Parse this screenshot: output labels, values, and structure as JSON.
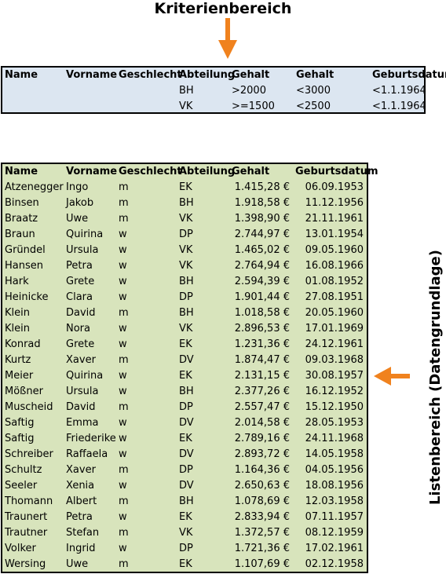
{
  "titles": {
    "top": "Kriterienbereich",
    "side": "Listenbereich (Datengrundlage)"
  },
  "colors": {
    "accent_arrow": "#f0821e",
    "criteria_bg": "#dce6f1",
    "list_bg": "#d8e4bc"
  },
  "criteria": {
    "headers": [
      "Name",
      "Vorname",
      "Geschlecht",
      "Abteilung",
      "Gehalt",
      "Gehalt",
      "Geburtsdatum"
    ],
    "rows": [
      [
        "",
        "",
        "",
        "BH",
        ">2000",
        "<3000",
        "<1.1.1964"
      ],
      [
        "",
        "",
        "",
        "VK",
        ">=1500",
        "<2500",
        "<1.1.1964"
      ]
    ]
  },
  "list": {
    "headers": [
      "Name",
      "Vorname",
      "Geschlecht",
      "Abteilung",
      "Gehalt",
      "Geburtsdatum"
    ],
    "rows": [
      [
        "Atzenegger",
        "Ingo",
        "m",
        "EK",
        "1.415,28 €",
        "06.09.1953"
      ],
      [
        "Binsen",
        "Jakob",
        "m",
        "BH",
        "1.918,58 €",
        "11.12.1956"
      ],
      [
        "Braatz",
        "Uwe",
        "m",
        "VK",
        "1.398,90 €",
        "21.11.1961"
      ],
      [
        "Braun",
        "Quirina",
        "w",
        "DP",
        "2.744,97 €",
        "13.01.1954"
      ],
      [
        "Gründel",
        "Ursula",
        "w",
        "VK",
        "1.465,02 €",
        "09.05.1960"
      ],
      [
        "Hansen",
        "Petra",
        "w",
        "VK",
        "2.764,94 €",
        "16.08.1966"
      ],
      [
        "Hark",
        "Grete",
        "w",
        "BH",
        "2.594,39 €",
        "01.08.1952"
      ],
      [
        "Heinicke",
        "Clara",
        "w",
        "DP",
        "1.901,44 €",
        "27.08.1951"
      ],
      [
        "Klein",
        "David",
        "m",
        "BH",
        "1.018,58 €",
        "20.05.1960"
      ],
      [
        "Klein",
        "Nora",
        "w",
        "VK",
        "2.896,53 €",
        "17.01.1969"
      ],
      [
        "Konrad",
        "Grete",
        "w",
        "EK",
        "1.231,36 €",
        "24.12.1961"
      ],
      [
        "Kurtz",
        "Xaver",
        "m",
        "DV",
        "1.874,47 €",
        "09.03.1968"
      ],
      [
        "Meier",
        "Quirina",
        "w",
        "EK",
        "2.131,15 €",
        "30.08.1957"
      ],
      [
        "Mößner",
        "Ursula",
        "w",
        "BH",
        "2.377,26 €",
        "16.12.1952"
      ],
      [
        "Muscheid",
        "David",
        "m",
        "DP",
        "2.557,47 €",
        "15.12.1950"
      ],
      [
        "Saftig",
        "Emma",
        "w",
        "DV",
        "2.014,58 €",
        "28.05.1953"
      ],
      [
        "Saftig",
        "Friederike",
        "w",
        "EK",
        "2.789,16 €",
        "24.11.1968"
      ],
      [
        "Schreiber",
        "Raffaela",
        "w",
        "DV",
        "2.893,72 €",
        "14.05.1958"
      ],
      [
        "Schultz",
        "Xaver",
        "m",
        "DP",
        "1.164,36 €",
        "04.05.1956"
      ],
      [
        "Seeler",
        "Xenia",
        "w",
        "DV",
        "2.650,63 €",
        "18.08.1956"
      ],
      [
        "Thomann",
        "Albert",
        "m",
        "BH",
        "1.078,69 €",
        "12.03.1958"
      ],
      [
        "Traunert",
        "Petra",
        "w",
        "EK",
        "2.833,94 €",
        "07.11.1957"
      ],
      [
        "Trautner",
        "Stefan",
        "m",
        "VK",
        "1.372,57 €",
        "08.12.1959"
      ],
      [
        "Volker",
        "Ingrid",
        "w",
        "DP",
        "1.721,36 €",
        "17.02.1961"
      ],
      [
        "Wersing",
        "Uwe",
        "m",
        "EK",
        "1.107,69 €",
        "02.12.1958"
      ]
    ]
  }
}
